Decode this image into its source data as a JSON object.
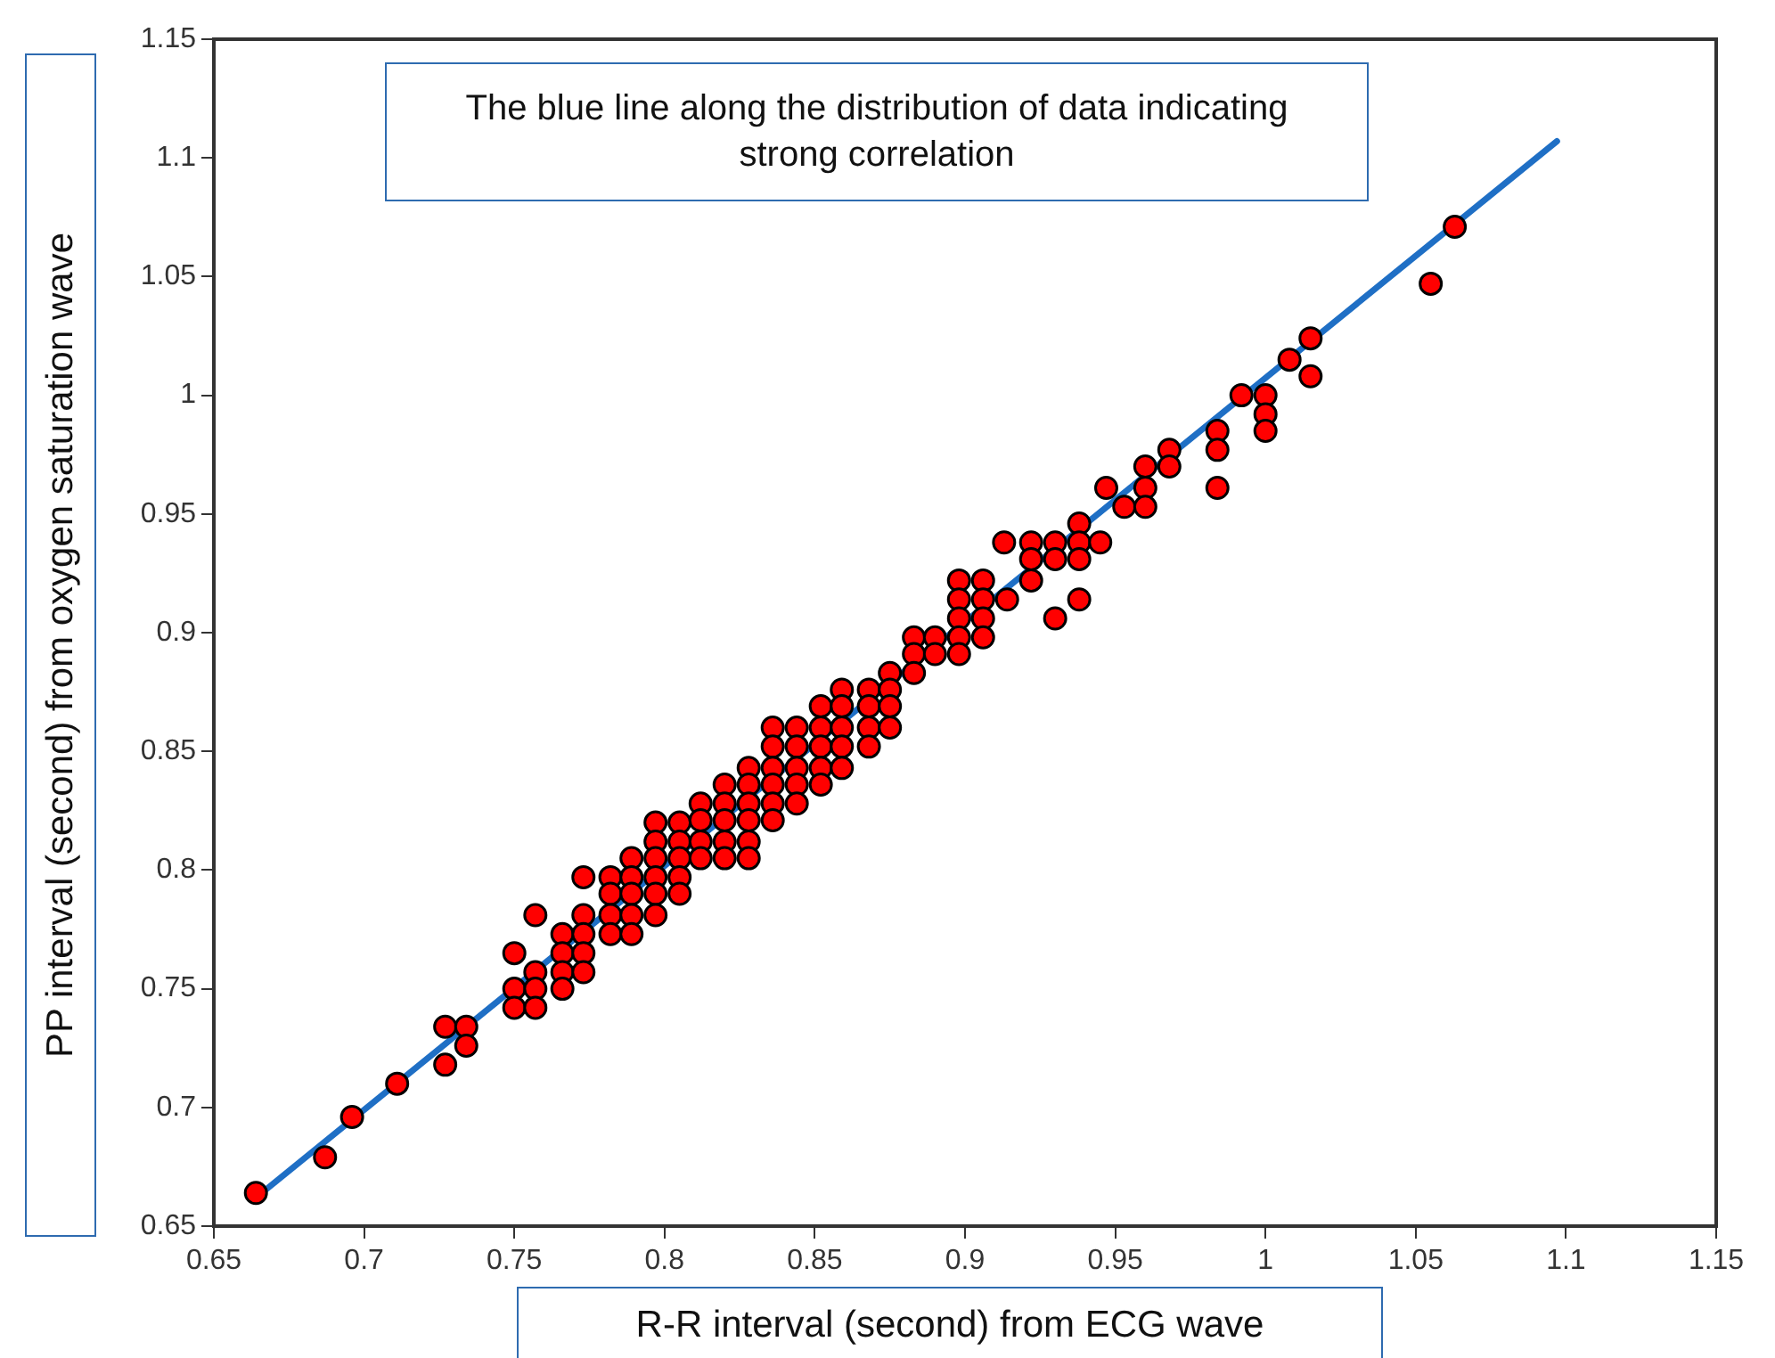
{
  "chart_data": {
    "type": "scatter",
    "xlabel": "R-R interval (second) from ECG wave",
    "ylabel": "PP interval (second) from oxygen saturation wave",
    "annotations": [
      "The blue line along the distribution of data indicating strong correlation"
    ],
    "xlim": [
      0.65,
      1.15
    ],
    "ylim": [
      0.65,
      1.15
    ],
    "xticks": [
      0.65,
      0.7,
      0.75,
      0.8,
      0.85,
      0.9,
      0.95,
      1,
      1.05,
      1.1,
      1.15
    ],
    "yticks": [
      0.65,
      0.7,
      0.75,
      0.8,
      0.85,
      0.9,
      0.95,
      1,
      1.05,
      1.1,
      1.15
    ],
    "series": [
      {
        "marker": "circle",
        "color": "#ff0000",
        "x": [
          0.664,
          0.687,
          0.696,
          0.711,
          0.727,
          0.727,
          0.734,
          0.734,
          0.75,
          0.75,
          0.75,
          0.757,
          0.757,
          0.757,
          0.757,
          0.766,
          0.766,
          0.766,
          0.766,
          0.773,
          0.773,
          0.773,
          0.773,
          0.773,
          0.782,
          0.782,
          0.782,
          0.782,
          0.789,
          0.789,
          0.789,
          0.789,
          0.789,
          0.797,
          0.797,
          0.797,
          0.797,
          0.797,
          0.797,
          0.805,
          0.805,
          0.805,
          0.805,
          0.805,
          0.812,
          0.812,
          0.812,
          0.812,
          0.82,
          0.82,
          0.82,
          0.82,
          0.82,
          0.828,
          0.828,
          0.828,
          0.828,
          0.828,
          0.828,
          0.836,
          0.836,
          0.836,
          0.836,
          0.836,
          0.836,
          0.844,
          0.844,
          0.844,
          0.844,
          0.844,
          0.852,
          0.852,
          0.852,
          0.852,
          0.852,
          0.859,
          0.859,
          0.859,
          0.859,
          0.859,
          0.868,
          0.868,
          0.868,
          0.868,
          0.875,
          0.875,
          0.875,
          0.875,
          0.883,
          0.883,
          0.883,
          0.89,
          0.89,
          0.898,
          0.898,
          0.898,
          0.898,
          0.898,
          0.906,
          0.906,
          0.906,
          0.906,
          0.913,
          0.914,
          0.922,
          0.922,
          0.922,
          0.93,
          0.93,
          0.93,
          0.938,
          0.938,
          0.938,
          0.938,
          0.945,
          0.947,
          0.953,
          0.96,
          0.96,
          0.96,
          0.968,
          0.968,
          0.984,
          0.984,
          0.984,
          0.992,
          1,
          1,
          1,
          1.008,
          1.015,
          1.015,
          1.055,
          1.063
        ],
        "values": [
          0.664,
          0.679,
          0.696,
          0.71,
          0.734,
          0.718,
          0.734,
          0.726,
          0.765,
          0.75,
          0.742,
          0.781,
          0.757,
          0.75,
          0.742,
          0.773,
          0.765,
          0.757,
          0.75,
          0.797,
          0.781,
          0.773,
          0.765,
          0.757,
          0.797,
          0.79,
          0.781,
          0.773,
          0.805,
          0.797,
          0.79,
          0.781,
          0.773,
          0.82,
          0.812,
          0.805,
          0.797,
          0.79,
          0.781,
          0.82,
          0.812,
          0.805,
          0.797,
          0.79,
          0.828,
          0.821,
          0.812,
          0.805,
          0.836,
          0.828,
          0.821,
          0.812,
          0.805,
          0.843,
          0.836,
          0.828,
          0.821,
          0.812,
          0.805,
          0.86,
          0.852,
          0.843,
          0.836,
          0.828,
          0.821,
          0.86,
          0.852,
          0.843,
          0.836,
          0.828,
          0.869,
          0.86,
          0.852,
          0.843,
          0.836,
          0.876,
          0.869,
          0.86,
          0.852,
          0.843,
          0.876,
          0.869,
          0.86,
          0.852,
          0.883,
          0.876,
          0.869,
          0.86,
          0.898,
          0.891,
          0.883,
          0.898,
          0.891,
          0.922,
          0.914,
          0.906,
          0.898,
          0.891,
          0.922,
          0.914,
          0.906,
          0.898,
          0.938,
          0.914,
          0.938,
          0.931,
          0.922,
          0.938,
          0.931,
          0.906,
          0.946,
          0.938,
          0.931,
          0.914,
          0.938,
          0.961,
          0.953,
          0.97,
          0.961,
          0.953,
          0.977,
          0.97,
          0.985,
          0.977,
          0.961,
          1,
          1,
          0.992,
          0.985,
          1.015,
          1.024,
          1.008,
          1.047,
          1.071
        ]
      },
      {
        "type": "line",
        "color": "#1f6fc5",
        "x": [
          0.665,
          1.097
        ],
        "values": [
          0.663,
          1.107
        ]
      }
    ]
  }
}
